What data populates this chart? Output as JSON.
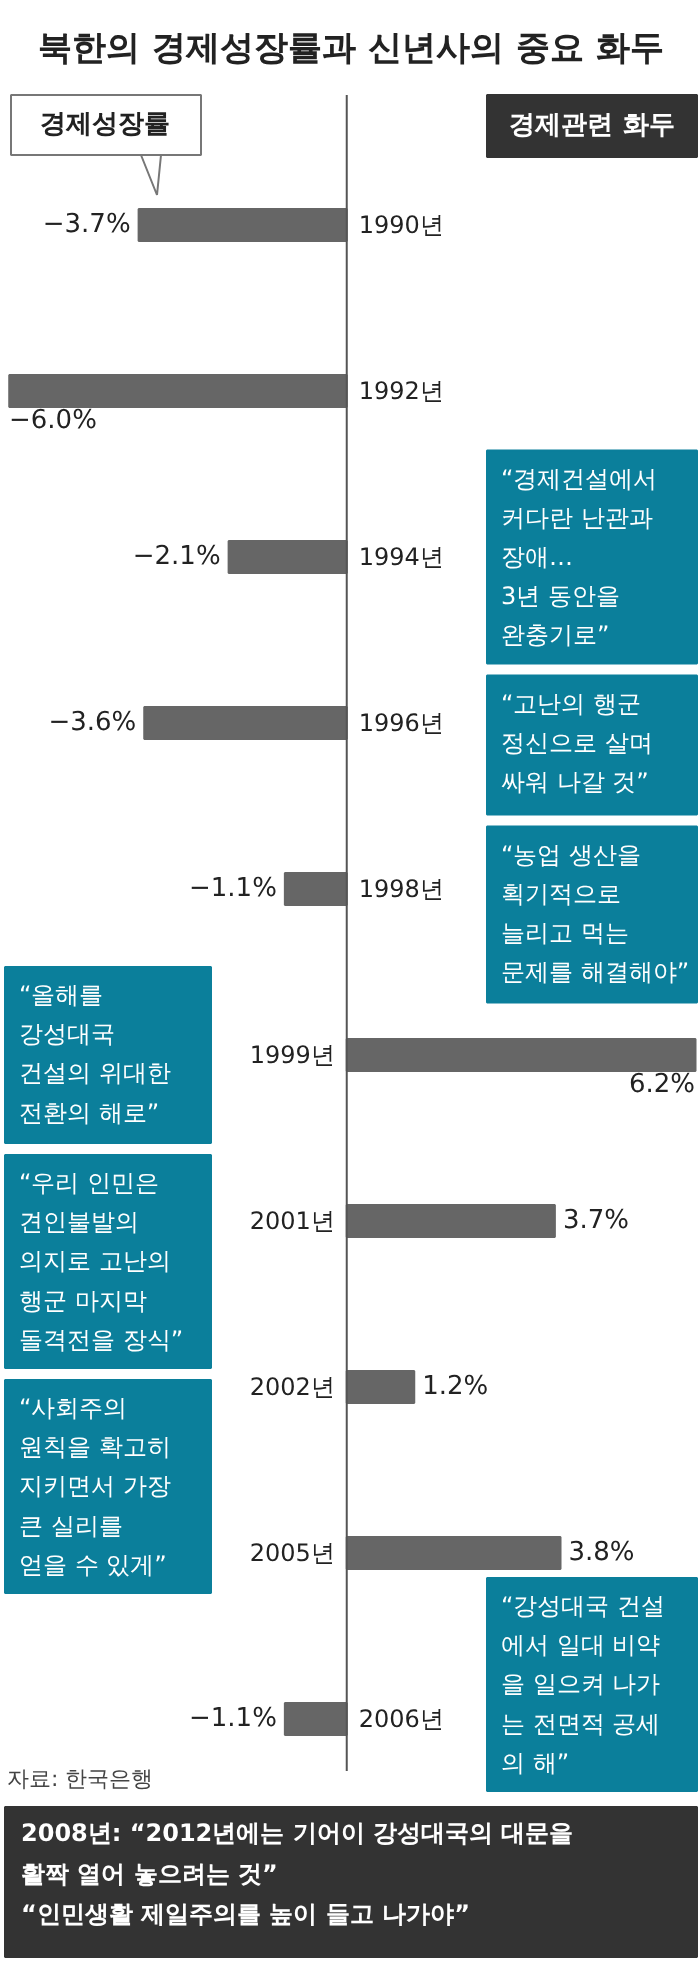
{
  "chart_data": {
    "type": "bar",
    "orientation": "horizontal",
    "title": "북한의 경제성장률과 신년사의 중요 화두",
    "categories": [
      "1990년",
      "1992년",
      "1994년",
      "1996년",
      "1998년",
      "1999년",
      "2001년",
      "2002년",
      "2005년",
      "2006년"
    ],
    "series": [
      {
        "name": "경제성장률",
        "color": "#666666",
        "values": [
          -3.7,
          -6.0,
          -2.1,
          -3.6,
          -1.1,
          6.2,
          3.7,
          1.2,
          3.8,
          -1.1
        ],
        "value_labels": [
          "−3.7%",
          "−6.0%",
          "−2.1%",
          "−3.6%",
          "−1.1%",
          "6.2%",
          "3.7%",
          "1.2%",
          "3.8%",
          "−1.1%"
        ]
      }
    ],
    "annotations": [
      "경제관련 화두",
      "“경제건설에서\n커다란 난관과\n장애…\n3년 동안을\n완충기로”",
      "“고난의 행군\n정신으로 살며\n싸워 나갈 것”",
      "“농업 생산을\n획기적으로\n늘리고 먹는\n문제를 해결해야”",
      "“올해를\n강성대국\n건설의 위대한\n전환의 해로”",
      "“우리 인민은\n견인불발의\n의지로 고난의\n행군 마지막\n돌격전을 장식”",
      "“사회주의\n원칙을 확고히\n지키면서 가장\n큰 실리를\n얻을 수 있게”",
      "“강성대국 건설\n에서 일대 비약\n을 일으켜 나가\n는 전면적 공세\n의 해”",
      "자료: 한국은행",
      "2008년: “2012년에는 기어이 강성대국의 대문을\n활짝 열어 놓으려는 것”\n“인민생활 제일주의를 높이 들고 나가야”"
    ]
  }
}
